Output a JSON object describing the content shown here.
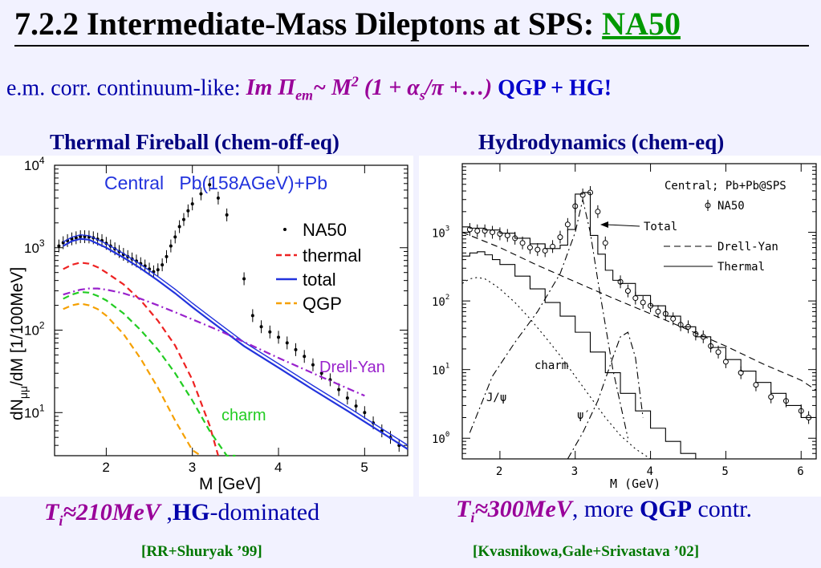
{
  "title": {
    "main": "7.2.2 Intermediate-Mass Dileptons at SPS:",
    "accent": "NA50"
  },
  "subtitle": {
    "lead": "e.m. corr. continuum-like:",
    "formula": "Im Π",
    "formula_sub": "em",
    "formula_rest": "~ M",
    "formula_sup": "2",
    "formula_tail": "(1 + α",
    "formula_sub2": "s",
    "formula_end": "/π +…)",
    "conclusion": "QGP + HG!"
  },
  "left": {
    "heading": "Thermal Fireball (chem-off-eq)",
    "note_T": "T",
    "note_sub": "i",
    "note_value": "≈210MeV",
    "note_comma": ",",
    "note_hg": "HG",
    "note_rest": "-dominated",
    "reference": "[RR+Shuryak ’99]"
  },
  "right": {
    "heading": "Hydrodynamics (chem-eq)",
    "note_T": "T",
    "note_sub": "i",
    "note_value": "≈300MeV",
    "note_rest": ", more",
    "note_qgp": "QGP",
    "note_tail": "contr.",
    "reference": "[Kvasnikowa,Gale+Srivastava ’02]"
  },
  "colors": {
    "title_accent": "#009900",
    "heading": "#000080",
    "formula": "#990099",
    "qgp": "#0000cc",
    "reference": "#007700"
  },
  "chart_data": [
    {
      "type": "line",
      "title": "Central   Pb(158AGeV)+Pb",
      "xlabel": "M [GeV]",
      "ylabel": "dN",
      "ylabel_sub": "μμ",
      "ylabel_rest": "/dM [1/100MeV]",
      "log_y": true,
      "xlim": [
        1.4,
        5.5
      ],
      "ylim": [
        3,
        10000
      ],
      "x_ticks": [
        2,
        3,
        4,
        5
      ],
      "y_ticks": [
        {
          "value": 10,
          "label": "10",
          "exp": "1"
        },
        {
          "value": 100,
          "label": "10",
          "exp": "2"
        },
        {
          "value": 1000,
          "label": "10",
          "exp": "3"
        },
        {
          "value": 10000,
          "label": "10",
          "exp": "4"
        }
      ],
      "legend": [
        "NA50",
        "thermal",
        "total",
        "QGP"
      ],
      "annotations": [
        "Drell-Yan",
        "charm"
      ],
      "series": [
        {
          "name": "NA50",
          "style": "points",
          "color": "#000000",
          "x": [
            1.45,
            1.5,
            1.55,
            1.6,
            1.65,
            1.7,
            1.75,
            1.8,
            1.85,
            1.9,
            1.95,
            2.0,
            2.05,
            2.1,
            2.15,
            2.2,
            2.25,
            2.3,
            2.35,
            2.4,
            2.45,
            2.5,
            2.55,
            2.6,
            2.65,
            2.7,
            2.75,
            2.8,
            2.85,
            2.9,
            2.95,
            3.0,
            3.1,
            3.2,
            3.3,
            3.4,
            3.6,
            3.7,
            3.8,
            3.9,
            4.0,
            4.1,
            4.2,
            4.3,
            4.4,
            4.5,
            4.6,
            4.7,
            4.8,
            4.9,
            5.0,
            5.1,
            5.2,
            5.3,
            5.4
          ],
          "y": [
            1050,
            1150,
            1220,
            1280,
            1320,
            1360,
            1360,
            1350,
            1320,
            1270,
            1220,
            1130,
            1050,
            970,
            900,
            830,
            780,
            730,
            690,
            640,
            600,
            550,
            510,
            540,
            620,
            780,
            1050,
            1350,
            1800,
            2200,
            2800,
            3400,
            4500,
            5800,
            4000,
            2500,
            420,
            150,
            110,
            95,
            82,
            70,
            58,
            48,
            38,
            30,
            25,
            19,
            15,
            12,
            10,
            7.5,
            6,
            5,
            4
          ]
        },
        {
          "name": "thermal",
          "style": "dashed",
          "color": "#ee2222",
          "x": [
            1.5,
            1.6,
            1.7,
            1.8,
            1.9,
            2.0,
            2.2,
            2.4,
            2.6,
            2.8,
            3.0,
            3.2,
            3.3
          ],
          "y": [
            550,
            620,
            660,
            640,
            580,
            500,
            360,
            230,
            130,
            65,
            25,
            7,
            3
          ]
        },
        {
          "name": "total",
          "style": "solid",
          "color": "#2233dd",
          "x": [
            1.5,
            1.6,
            1.7,
            1.8,
            1.9,
            2.0,
            2.2,
            2.4,
            2.6,
            2.8,
            3.0,
            3.3,
            3.6,
            4.0,
            4.4,
            4.8,
            5.2,
            5.5
          ],
          "y": [
            1050,
            1200,
            1280,
            1250,
            1120,
            1000,
            760,
            560,
            400,
            280,
            190,
            110,
            64,
            35,
            19,
            10.5,
            5.7,
            3.6
          ]
        },
        {
          "name": "QGP",
          "style": "dashed",
          "color": "#f5a000",
          "x": [
            1.5,
            1.6,
            1.7,
            1.8,
            1.9,
            2.0,
            2.2,
            2.4,
            2.6,
            2.8,
            3.0,
            3.1
          ],
          "y": [
            180,
            200,
            210,
            200,
            180,
            150,
            90,
            45,
            20,
            8,
            3.5,
            2.5
          ]
        },
        {
          "name": "Drell-Yan",
          "style": "dashdot",
          "color": "#9922cc",
          "x": [
            1.5,
            1.6,
            1.7,
            1.8,
            1.9,
            2.0,
            2.2,
            2.4,
            2.6,
            2.8,
            3.0,
            3.3,
            3.6,
            4.0,
            4.5,
            5.0
          ],
          "y": [
            270,
            290,
            310,
            320,
            320,
            310,
            280,
            240,
            200,
            165,
            135,
            100,
            72,
            46,
            27,
            16
          ]
        },
        {
          "name": "charm",
          "style": "dashed",
          "color": "#22cc22",
          "x": [
            1.5,
            1.6,
            1.7,
            1.8,
            1.9,
            2.0,
            2.2,
            2.4,
            2.6,
            2.8,
            3.0,
            3.2,
            3.4,
            3.5
          ],
          "y": [
            240,
            270,
            290,
            285,
            260,
            230,
            160,
            100,
            58,
            30,
            14,
            6,
            3,
            2.5
          ]
        }
      ]
    },
    {
      "type": "line",
      "title": "Central; Pb+Pb@SPS",
      "xlabel": "M (GeV)",
      "log_y": true,
      "xlim": [
        1.5,
        6.2
      ],
      "ylim": [
        0.5,
        10000
      ],
      "x_ticks": [
        2,
        3,
        4,
        5,
        6
      ],
      "y_ticks": [
        {
          "value": 1,
          "label": "10",
          "exp": "0"
        },
        {
          "value": 10,
          "label": "10",
          "exp": "1"
        },
        {
          "value": 100,
          "label": "10",
          "exp": "2"
        },
        {
          "value": 1000,
          "label": "10",
          "exp": "3"
        }
      ],
      "legend": [
        "NA50",
        "Total",
        "Drell-Yan",
        "Thermal"
      ],
      "annotations": [
        "Total",
        "charm",
        "J/ψ",
        "ψ′"
      ],
      "series": [
        {
          "name": "NA50",
          "style": "points",
          "color": "#000000",
          "x": [
            1.6,
            1.7,
            1.8,
            1.9,
            2.0,
            2.1,
            2.2,
            2.3,
            2.4,
            2.5,
            2.6,
            2.7,
            2.8,
            2.9,
            3.0,
            3.1,
            3.2,
            3.3,
            3.4,
            3.6,
            3.7,
            3.8,
            3.9,
            4.0,
            4.1,
            4.2,
            4.3,
            4.4,
            4.5,
            4.6,
            4.7,
            4.8,
            4.9,
            5.0,
            5.2,
            5.4,
            5.6,
            5.8,
            6.0,
            6.1
          ],
          "y": [
            1100,
            1050,
            1050,
            1000,
            950,
            900,
            820,
            700,
            600,
            560,
            540,
            620,
            850,
            1300,
            2400,
            3500,
            3800,
            2000,
            700,
            190,
            140,
            110,
            95,
            85,
            70,
            65,
            55,
            45,
            42,
            33,
            30,
            22,
            18,
            13,
            9,
            6,
            4,
            3.5,
            2.5,
            2
          ]
        },
        {
          "name": "Total",
          "style": "step",
          "color": "#000000",
          "x": [
            1.5,
            1.6,
            1.8,
            2.0,
            2.2,
            2.4,
            2.6,
            2.8,
            2.9,
            3.0,
            3.1,
            3.2,
            3.3,
            3.4,
            3.5,
            3.6,
            3.8,
            4.0,
            4.2,
            4.4,
            4.6,
            4.8,
            5.0,
            5.2,
            5.4,
            5.6,
            5.8,
            6.0,
            6.2
          ],
          "y": [
            1200,
            1150,
            1080,
            970,
            820,
            680,
            580,
            650,
            1100,
            3600,
            3800,
            900,
            480,
            280,
            200,
            180,
            120,
            85,
            60,
            42,
            30,
            21,
            14,
            9.5,
            6.5,
            4.5,
            3,
            2,
            1.3
          ]
        },
        {
          "name": "Drell-Yan",
          "style": "dashed",
          "color": "#000000",
          "x": [
            1.5,
            2.0,
            2.5,
            3.0,
            3.5,
            4.0,
            4.5,
            5.0,
            5.5,
            6.0,
            6.2
          ],
          "y": [
            1000,
            600,
            330,
            190,
            110,
            65,
            38,
            22,
            12,
            7,
            5
          ]
        },
        {
          "name": "Thermal",
          "style": "step",
          "color": "#000000",
          "x": [
            1.5,
            1.6,
            1.7,
            1.8,
            1.9,
            2.0,
            2.2,
            2.4,
            2.6,
            2.8,
            3.0,
            3.2,
            3.4,
            3.6,
            3.8,
            4.0,
            4.2,
            4.4,
            4.6
          ],
          "y": [
            450,
            500,
            520,
            470,
            400,
            340,
            230,
            150,
            95,
            60,
            35,
            18,
            9,
            4.5,
            2.5,
            1.4,
            0.9,
            0.6,
            0.5
          ]
        },
        {
          "name": "charm",
          "style": "dotted",
          "color": "#000000",
          "x": [
            1.5,
            1.6,
            1.7,
            1.8,
            1.9,
            2.0,
            2.2,
            2.4,
            2.6,
            2.8,
            3.0,
            3.2,
            3.4,
            3.6,
            3.8,
            4.0
          ],
          "y": [
            180,
            210,
            220,
            210,
            180,
            150,
            95,
            55,
            30,
            16,
            8,
            4,
            2,
            1.1,
            0.7,
            0.5
          ]
        },
        {
          "name": "J/ψ",
          "style": "dashdot",
          "color": "#000000",
          "x": [
            1.6,
            1.9,
            2.2,
            2.5,
            2.8,
            3.0,
            3.1,
            3.2,
            3.3,
            3.5,
            3.7
          ],
          "y": [
            1.2,
            8,
            25,
            70,
            250,
            1000,
            3000,
            1000,
            200,
            10,
            1
          ]
        },
        {
          "name": "ψ′",
          "style": "dashdot",
          "color": "#000000",
          "x": [
            2.9,
            3.1,
            3.3,
            3.5,
            3.6,
            3.7,
            3.8,
            3.9
          ],
          "y": [
            0.5,
            1.2,
            3.5,
            15,
            30,
            35,
            15,
            2
          ]
        }
      ]
    }
  ]
}
